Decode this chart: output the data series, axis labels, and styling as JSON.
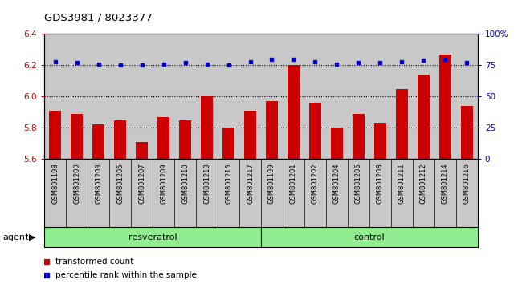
{
  "title": "GDS3981 / 8023377",
  "categories": [
    "GSM801198",
    "GSM801200",
    "GSM801203",
    "GSM801205",
    "GSM801207",
    "GSM801209",
    "GSM801210",
    "GSM801213",
    "GSM801215",
    "GSM801217",
    "GSM801199",
    "GSM801201",
    "GSM801202",
    "GSM801204",
    "GSM801206",
    "GSM801208",
    "GSM801211",
    "GSM801212",
    "GSM801214",
    "GSM801216"
  ],
  "bar_values": [
    5.91,
    5.89,
    5.82,
    5.85,
    5.71,
    5.87,
    5.85,
    6.0,
    5.8,
    5.91,
    5.97,
    6.2,
    5.96,
    5.8,
    5.89,
    5.83,
    6.05,
    6.14,
    6.27,
    5.94
  ],
  "percentile_values": [
    78,
    77,
    76,
    75,
    75,
    76,
    77,
    76,
    75,
    78,
    80,
    80,
    78,
    76,
    77,
    77,
    78,
    79,
    80,
    77
  ],
  "bar_color": "#cc0000",
  "percentile_color": "#0000cc",
  "ylim_left": [
    5.6,
    6.4
  ],
  "ylim_right": [
    0,
    100
  ],
  "yticks_left": [
    5.6,
    5.8,
    6.0,
    6.2,
    6.4
  ],
  "yticks_right": [
    0,
    25,
    50,
    75,
    100
  ],
  "ytick_labels_right": [
    "0",
    "25",
    "50",
    "75",
    "100%"
  ],
  "grid_values": [
    5.8,
    6.0,
    6.2
  ],
  "resveratrol_count": 10,
  "control_count": 10,
  "resveratrol_label": "resveratrol",
  "control_label": "control",
  "agent_label": "agent",
  "legend_bar_label": "transformed count",
  "legend_pct_label": "percentile rank within the sample",
  "plot_bg_color": "#c8c8c8",
  "tick_label_bg_color": "#c8c8c8",
  "fig_bg_color": "#ffffff",
  "group_color": "#90ee90",
  "group_border_color": "#000000",
  "bar_width": 0.55,
  "bar_linewidth": 0,
  "spine_color": "#000000"
}
